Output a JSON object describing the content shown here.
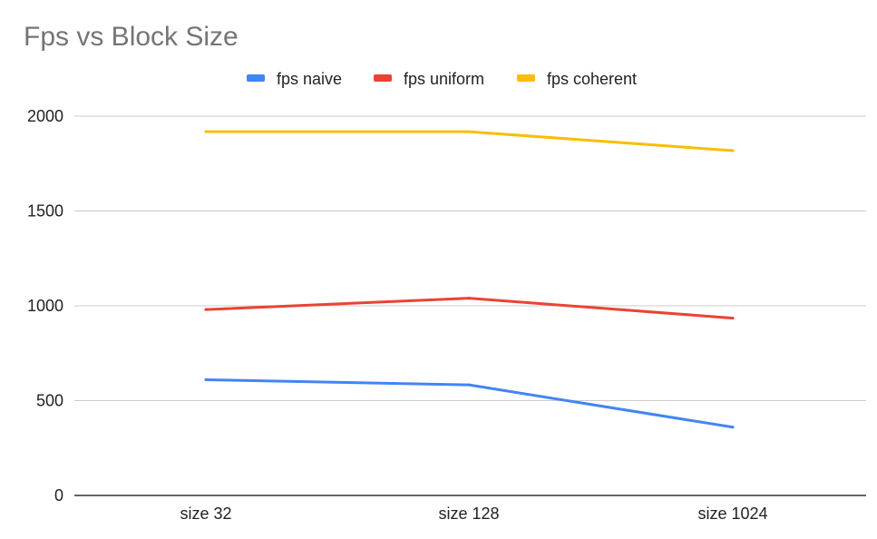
{
  "chart_data": {
    "type": "line",
    "title": "Fps vs Block Size",
    "xlabel": "",
    "ylabel": "",
    "categories": [
      "size 32",
      "size 128",
      "size 1024"
    ],
    "ylim": [
      0,
      2000
    ],
    "yticks": [
      0,
      500,
      1000,
      1500,
      2000
    ],
    "grid": true,
    "legend_position": "top",
    "series": [
      {
        "name": "fps naive",
        "color": "#4285f4",
        "values": [
          610,
          583,
          360
        ]
      },
      {
        "name": "fps uniform",
        "color": "#ea4335",
        "values": [
          980,
          1040,
          935
        ]
      },
      {
        "name": "fps coherent",
        "color": "#fbbc04",
        "values": [
          1918,
          1918,
          1818
        ]
      }
    ]
  }
}
